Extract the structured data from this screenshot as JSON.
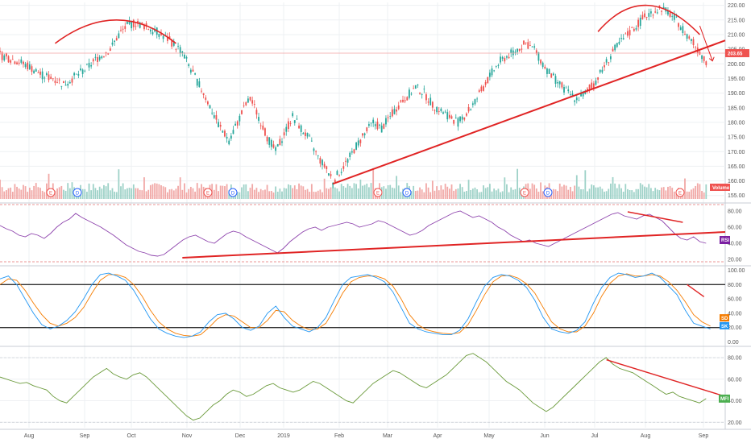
{
  "chart_data": {
    "type": "line",
    "x_axis": {
      "labels": [
        "Aug",
        "Sep",
        "Oct",
        "Nov",
        "Dec",
        "2019",
        "Feb",
        "Mar",
        "Apr",
        "May",
        "Jun",
        "Jul",
        "Aug",
        "Sep"
      ]
    },
    "price_panel": {
      "type": "candlestick",
      "y_ticks": [
        "220.00",
        "215.00",
        "210.00",
        "205.00",
        "200.00",
        "195.00",
        "190.00",
        "185.00",
        "180.00",
        "175.00",
        "170.00",
        "165.00",
        "160.00",
        "155.00"
      ],
      "ylim": [
        153,
        221
      ],
      "last_price": "203.65",
      "volume_label": "Volume",
      "events": [
        "E",
        "D",
        "E",
        "D",
        "E",
        "D",
        "E",
        "D",
        "E"
      ],
      "price_anchors": [
        [
          0,
          203
        ],
        [
          8,
          201
        ],
        [
          14,
          199
        ],
        [
          20,
          196
        ],
        [
          26,
          195
        ],
        [
          30,
          193
        ],
        [
          36,
          196
        ],
        [
          40,
          198
        ],
        [
          46,
          202
        ],
        [
          52,
          205
        ],
        [
          56,
          210
        ],
        [
          60,
          213
        ],
        [
          64,
          214
        ],
        [
          68,
          213
        ],
        [
          74,
          211
        ],
        [
          80,
          208
        ],
        [
          86,
          204
        ],
        [
          90,
          198
        ],
        [
          96,
          190
        ],
        [
          100,
          184
        ],
        [
          104,
          178
        ],
        [
          108,
          174
        ],
        [
          112,
          180
        ],
        [
          116,
          186
        ],
        [
          118,
          188
        ],
        [
          122,
          182
        ],
        [
          126,
          175
        ],
        [
          130,
          170
        ],
        [
          134,
          176
        ],
        [
          138,
          182
        ],
        [
          142,
          178
        ],
        [
          146,
          174
        ],
        [
          150,
          168
        ],
        [
          154,
          164
        ],
        [
          157,
          160
        ],
        [
          160,
          163
        ],
        [
          164,
          167
        ],
        [
          168,
          172
        ],
        [
          172,
          176
        ],
        [
          176,
          180
        ],
        [
          180,
          178
        ],
        [
          184,
          182
        ],
        [
          188,
          186
        ],
        [
          192,
          189
        ],
        [
          196,
          192
        ],
        [
          200,
          190
        ],
        [
          204,
          186
        ],
        [
          208,
          184
        ],
        [
          212,
          182
        ],
        [
          216,
          180
        ],
        [
          220,
          183
        ],
        [
          224,
          187
        ],
        [
          228,
          192
        ],
        [
          232,
          197
        ],
        [
          236,
          201
        ],
        [
          240,
          203
        ],
        [
          244,
          205
        ],
        [
          248,
          207
        ],
        [
          252,
          205
        ],
        [
          256,
          200
        ],
        [
          260,
          196
        ],
        [
          264,
          193
        ],
        [
          268,
          190
        ],
        [
          272,
          188
        ],
        [
          276,
          190
        ],
        [
          280,
          193
        ],
        [
          284,
          198
        ],
        [
          288,
          203
        ],
        [
          292,
          207
        ],
        [
          296,
          210
        ],
        [
          300,
          213
        ],
        [
          304,
          216
        ],
        [
          308,
          218
        ],
        [
          312,
          219
        ],
        [
          316,
          217
        ],
        [
          320,
          214
        ],
        [
          324,
          210
        ],
        [
          328,
          206
        ],
        [
          331,
          203
        ],
        [
          333,
          201
        ]
      ],
      "trend_line": [
        [
          157,
          159
        ],
        [
          342,
          208
        ]
      ],
      "arcs": [
        {
          "points": [
            [
              26,
              207
            ],
            [
              55,
              215
            ],
            [
              83,
              207
            ]
          ]
        },
        {
          "points": [
            [
              282,
              211
            ],
            [
              305,
              220
            ],
            [
              330,
              210
            ]
          ]
        }
      ]
    },
    "rsi_panel": {
      "label": "RSI",
      "y_ticks": [
        "80.00",
        "60.00",
        "40.00",
        "20.00"
      ],
      "ylim": [
        14,
        88
      ],
      "values": [
        62,
        58,
        55,
        50,
        48,
        52,
        50,
        46,
        52,
        60,
        66,
        70,
        77,
        72,
        68,
        64,
        60,
        55,
        50,
        44,
        38,
        34,
        30,
        28,
        25,
        24,
        26,
        32,
        38,
        44,
        48,
        50,
        46,
        42,
        40,
        46,
        52,
        55,
        53,
        48,
        44,
        40,
        36,
        32,
        28,
        34,
        42,
        48,
        54,
        58,
        60,
        56,
        60,
        62,
        64,
        66,
        64,
        60,
        62,
        64,
        68,
        66,
        62,
        58,
        54,
        50,
        52,
        56,
        62,
        66,
        70,
        74,
        78,
        80,
        76,
        72,
        74,
        70,
        66,
        60,
        56,
        50,
        46,
        42,
        44,
        40,
        38,
        36,
        40,
        44,
        48,
        52,
        56,
        60,
        64,
        68,
        72,
        76,
        78,
        74,
        72,
        70,
        74,
        76,
        72,
        68,
        60,
        52,
        46,
        44,
        48,
        42,
        40
      ],
      "trend_line": [
        [
          86,
          22
        ],
        [
          342,
          54
        ]
      ],
      "arrow_line": [
        [
          296,
          79
        ],
        [
          322,
          66
        ]
      ]
    },
    "stoch_panel": {
      "labels": [
        "SD",
        "SK"
      ],
      "y_ticks": [
        "100.00",
        "80.00",
        "60.00",
        "40.00",
        "20.00",
        "0.00"
      ],
      "ylim": [
        -4,
        104
      ],
      "bands": [
        80,
        20
      ],
      "k_values": [
        88,
        92,
        80,
        60,
        40,
        24,
        18,
        22,
        30,
        42,
        60,
        80,
        94,
        96,
        92,
        86,
        72,
        52,
        32,
        18,
        12,
        8,
        6,
        8,
        14,
        28,
        38,
        40,
        32,
        20,
        16,
        22,
        40,
        50,
        34,
        22,
        18,
        14,
        20,
        34,
        58,
        80,
        90,
        92,
        94,
        90,
        84,
        70,
        48,
        26,
        18,
        14,
        12,
        10,
        10,
        16,
        32,
        56,
        78,
        90,
        94,
        92,
        86,
        76,
        58,
        34,
        18,
        14,
        12,
        16,
        28,
        54,
        76,
        90,
        96,
        94,
        90,
        92,
        96,
        90,
        78,
        66,
        44,
        26,
        22,
        18
      ],
      "d_values": [
        80,
        88,
        86,
        72,
        54,
        38,
        26,
        22,
        26,
        34,
        48,
        68,
        86,
        94,
        94,
        90,
        80,
        64,
        44,
        28,
        18,
        12,
        9,
        8,
        10,
        20,
        32,
        38,
        36,
        28,
        20,
        20,
        30,
        44,
        42,
        30,
        22,
        17,
        18,
        26,
        46,
        68,
        84,
        90,
        92,
        92,
        88,
        78,
        60,
        38,
        24,
        17,
        14,
        12,
        11,
        13,
        24,
        44,
        66,
        84,
        92,
        93,
        89,
        81,
        68,
        48,
        28,
        18,
        14,
        14,
        22,
        40,
        64,
        82,
        92,
        95,
        92,
        92,
        94,
        92,
        84,
        72,
        56,
        38,
        28,
        22
      ],
      "arrow_line": [
        [
          324,
          80
        ],
        [
          332,
          63
        ]
      ]
    },
    "mfi_panel": {
      "label": "MFI",
      "y_ticks": [
        "80.00",
        "60.00",
        "40.00",
        "20.00"
      ],
      "ylim": [
        15,
        89
      ],
      "values": [
        62,
        60,
        58,
        56,
        57,
        54,
        52,
        50,
        44,
        40,
        38,
        44,
        50,
        56,
        62,
        66,
        70,
        65,
        62,
        60,
        64,
        66,
        62,
        56,
        50,
        44,
        38,
        32,
        26,
        22,
        24,
        30,
        36,
        40,
        46,
        50,
        48,
        44,
        46,
        50,
        54,
        56,
        52,
        50,
        48,
        50,
        54,
        58,
        56,
        52,
        48,
        44,
        40,
        38,
        44,
        50,
        56,
        60,
        64,
        68,
        66,
        62,
        58,
        54,
        52,
        56,
        60,
        64,
        70,
        76,
        82,
        84,
        80,
        76,
        70,
        64,
        58,
        54,
        50,
        44,
        38,
        34,
        30,
        34,
        40,
        46,
        52,
        58,
        64,
        70,
        76,
        80,
        74,
        70,
        68,
        66,
        62,
        58,
        54,
        50,
        46,
        48,
        44,
        42,
        40,
        38,
        42
      ],
      "arrow_line": [
        [
          286,
          78
        ],
        [
          342,
          44
        ]
      ]
    }
  }
}
